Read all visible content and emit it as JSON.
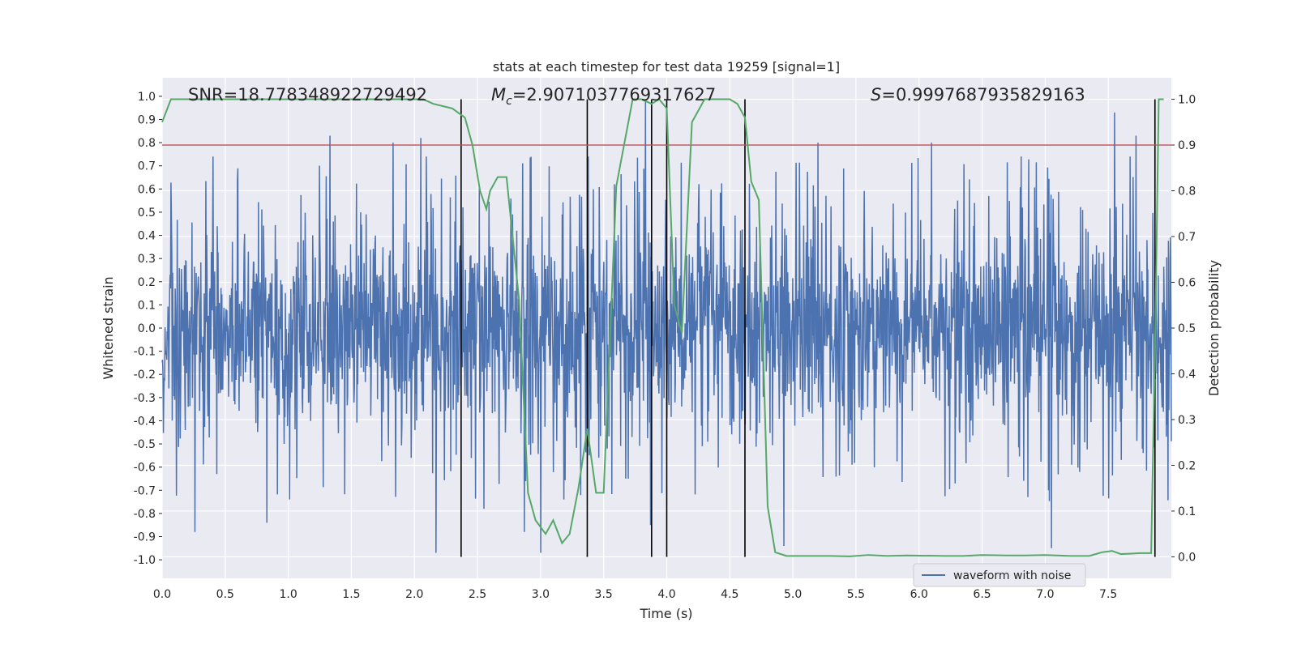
{
  "chart_data": {
    "type": "line",
    "title": "stats at each timestep for test data 19259 [signal=1]",
    "xlabel": "Time (s)",
    "ylabel": "Whitened strain",
    "y2label": "Detection probability",
    "xlim": [
      0.0,
      8.0
    ],
    "ylim": [
      -1.08,
      1.08
    ],
    "y2lim": [
      -0.047,
      1.047
    ],
    "x_ticks": [
      "0.0",
      "0.5",
      "1.0",
      "1.5",
      "2.0",
      "2.5",
      "3.0",
      "3.5",
      "4.0",
      "4.5",
      "5.0",
      "5.5",
      "6.0",
      "6.5",
      "7.0",
      "7.5"
    ],
    "y_ticks": [
      "-1.0",
      "-0.9",
      "-0.8",
      "-0.7",
      "-0.6",
      "-0.5",
      "-0.4",
      "-0.3",
      "-0.2",
      "-0.1",
      "0.0",
      "0.1",
      "0.2",
      "0.3",
      "0.4",
      "0.5",
      "0.6",
      "0.7",
      "0.8",
      "0.9",
      "1.0"
    ],
    "y2_ticks": [
      "0.0",
      "0.1",
      "0.2",
      "0.3",
      "0.4",
      "0.5",
      "0.6",
      "0.7",
      "0.8",
      "0.9",
      "1.0"
    ],
    "grid": true,
    "legend_position": "lower-right",
    "annotations": {
      "snr": "SNR=18.778348922729492",
      "mc_symbol": "M",
      "mc_sub": "c",
      "mc_value": "=2.9071037769317627",
      "s_symbol": "S",
      "s_value": "=0.9997687935829163"
    },
    "threshold_y2": 0.9,
    "event_lines_x": [
      2.37,
      3.37,
      3.88,
      4.0,
      4.62,
      7.87
    ],
    "series": [
      {
        "name": "waveform with noise",
        "kind": "noise-strain",
        "color": "#4c72b0",
        "typical_amplitude": 0.38,
        "peaks": [
          {
            "x": 1.33,
            "y": 0.83
          },
          {
            "x": 1.83,
            "y": 0.8
          },
          {
            "x": 2.05,
            "y": 0.82
          },
          {
            "x": 3.83,
            "y": 0.98
          },
          {
            "x": 6.1,
            "y": 0.8
          },
          {
            "x": 7.55,
            "y": 0.93
          },
          {
            "x": 7.72,
            "y": 0.83
          },
          {
            "x": 5.2,
            "y": 0.8
          },
          {
            "x": 2.17,
            "y": -0.97
          },
          {
            "x": 3.0,
            "y": -0.97
          },
          {
            "x": 7.05,
            "y": -0.95
          },
          {
            "x": 0.26,
            "y": -0.88
          },
          {
            "x": 2.87,
            "y": -0.88
          },
          {
            "x": 4.93,
            "y": -0.94
          },
          {
            "x": 3.87,
            "y": -0.85
          },
          {
            "x": 0.83,
            "y": -0.84
          }
        ]
      },
      {
        "name": "detection probability",
        "axis": "right",
        "color": "#55a868",
        "x": [
          0.0,
          0.07,
          0.2,
          0.5,
          1.0,
          1.5,
          2.0,
          2.07,
          2.15,
          2.3,
          2.4,
          2.46,
          2.52,
          2.57,
          2.6,
          2.66,
          2.73,
          2.83,
          2.9,
          2.96,
          3.04,
          3.1,
          3.17,
          3.23,
          3.3,
          3.37,
          3.44,
          3.5,
          3.6,
          3.73,
          3.8,
          3.88,
          3.94,
          4.0,
          4.06,
          4.12,
          4.2,
          4.3,
          4.4,
          4.5,
          4.56,
          4.62,
          4.67,
          4.73,
          4.8,
          4.86,
          4.95,
          5.0,
          5.3,
          5.45,
          5.6,
          5.75,
          5.9,
          6.2,
          6.35,
          6.5,
          6.7,
          6.85,
          7.0,
          7.2,
          7.35,
          7.45,
          7.53,
          7.6,
          7.75,
          7.84,
          7.87,
          7.9,
          7.94
        ],
        "y": [
          0.95,
          1.0,
          1.0,
          1.0,
          1.0,
          1.0,
          1.0,
          1.0,
          0.99,
          0.98,
          0.96,
          0.9,
          0.8,
          0.76,
          0.8,
          0.83,
          0.83,
          0.56,
          0.14,
          0.08,
          0.05,
          0.08,
          0.03,
          0.05,
          0.15,
          0.28,
          0.14,
          0.14,
          0.81,
          1.0,
          1.0,
          0.99,
          1.0,
          0.98,
          0.55,
          0.49,
          0.95,
          1.0,
          1.0,
          1.0,
          0.99,
          0.96,
          0.82,
          0.78,
          0.11,
          0.01,
          0.002,
          0.002,
          0.002,
          0.001,
          0.004,
          0.002,
          0.003,
          0.002,
          0.002,
          0.004,
          0.003,
          0.003,
          0.004,
          0.002,
          0.002,
          0.01,
          0.013,
          0.006,
          0.008,
          0.008,
          0.45,
          1.0,
          1.0
        ]
      }
    ],
    "threshold_color": "#c44e52",
    "event_line_color": "#000000",
    "background_color": "#eaeaf2"
  },
  "legend": {
    "label": "waveform with noise"
  }
}
